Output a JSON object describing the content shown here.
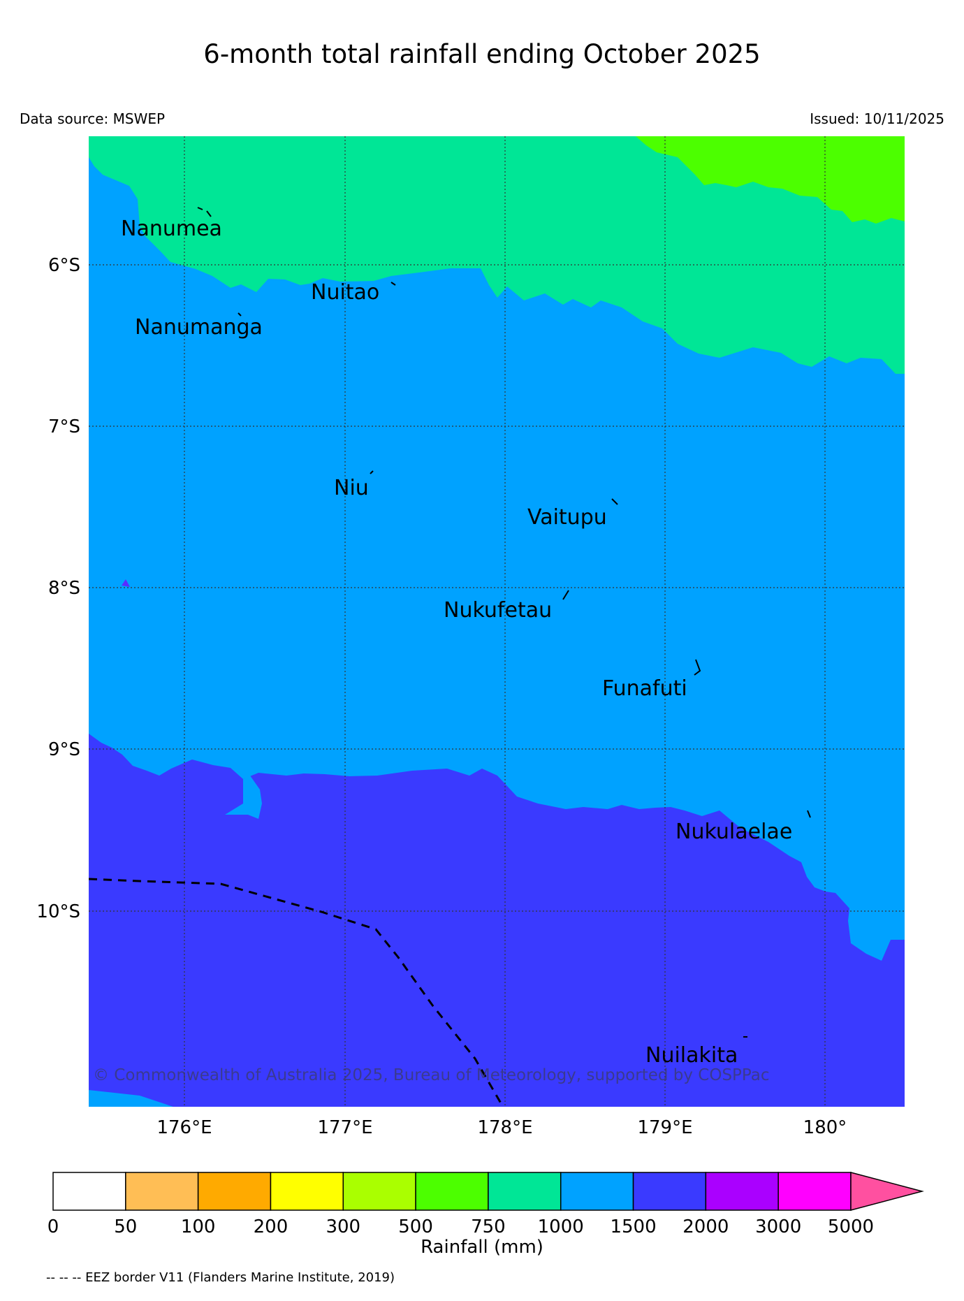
{
  "title": "6-month total rainfall ending October 2025",
  "data_source": "Data source: MSWEP",
  "issued": "Issued: 10/11/2025",
  "colors": {
    "band_750_1000": "#00e696",
    "band_1000_1500": "#00a2ff",
    "band_1500_2000": "#3a3aff",
    "band_500_750": "#4cff00"
  },
  "latitudes": [
    "6°S",
    "7°S",
    "8°S",
    "9°S",
    "10°S"
  ],
  "longitudes": [
    "176°E",
    "177°E",
    "178°E",
    "179°E",
    "180°"
  ],
  "places": [
    {
      "name": "Nanumea"
    },
    {
      "name": "Nuitao"
    },
    {
      "name": "Nanumanga"
    },
    {
      "name": "Niu"
    },
    {
      "name": "Vaitupu"
    },
    {
      "name": "Nukufetau"
    },
    {
      "name": "Funafuti"
    },
    {
      "name": "Nukulaelae"
    },
    {
      "name": "Nuilakita"
    }
  ],
  "copyright": "© Commonwealth of Australia 2025, Bureau of Meteorology, supported by COSPPac",
  "colorbar": {
    "ticks": [
      "0",
      "50",
      "100",
      "200",
      "300",
      "500",
      "750",
      "1000",
      "1500",
      "2000",
      "3000",
      "5000"
    ],
    "colors": [
      "#ffffff",
      "#ffbe55",
      "#ffaa00",
      "#ffff00",
      "#aaff00",
      "#4cff00",
      "#00e696",
      "#00a2ff",
      "#3a3aff",
      "#aa00ff",
      "#ff00ff"
    ],
    "extend_color": "#ff50a0",
    "label": "Rainfall (mm)"
  },
  "eez_note": "-- -- -- EEZ border V11 (Flanders Marine Institute, 2019)"
}
